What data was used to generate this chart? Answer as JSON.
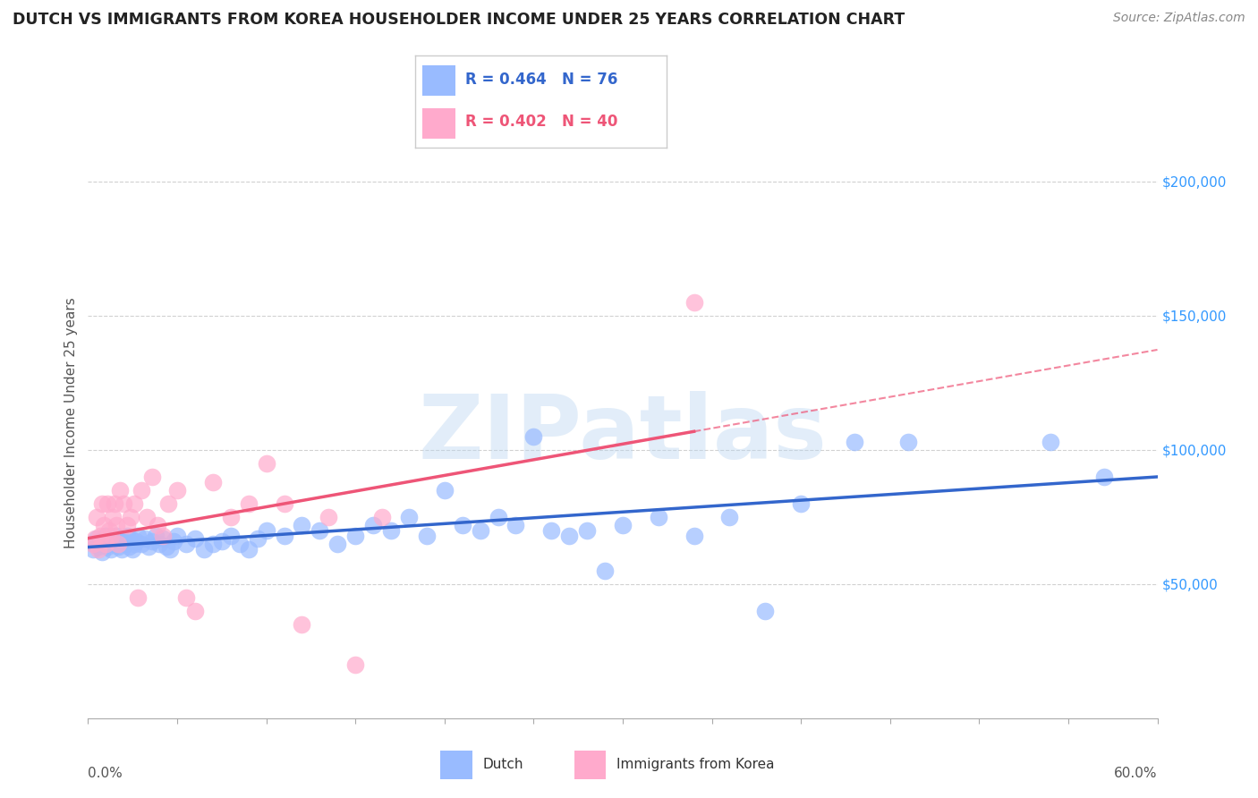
{
  "title": "DUTCH VS IMMIGRANTS FROM KOREA HOUSEHOLDER INCOME UNDER 25 YEARS CORRELATION CHART",
  "source": "Source: ZipAtlas.com",
  "ylabel": "Householder Income Under 25 years",
  "xlim": [
    0.0,
    0.6
  ],
  "ylim": [
    0,
    220000
  ],
  "yticks": [
    50000,
    100000,
    150000,
    200000
  ],
  "ytick_labels": [
    "$50,000",
    "$100,000",
    "$150,000",
    "$200,000"
  ],
  "xtick_left_label": "0.0%",
  "xtick_right_label": "60.0%",
  "background_color": "#ffffff",
  "grid_color": "#cccccc",
  "title_color": "#222222",
  "title_fontsize": 12.5,
  "source_fontsize": 10,
  "watermark_text": "ZIPatlas",
  "watermark_color": "#b8d4f0",
  "blue_color": "#99bbff",
  "pink_color": "#ffaacc",
  "blue_line_color": "#3366cc",
  "pink_line_color": "#ee5577",
  "legend_text_color": "#3366cc",
  "legend_R_blue": "R = 0.464",
  "legend_N_blue": "N = 76",
  "legend_R_pink": "R = 0.402",
  "legend_N_pink": "N = 40",
  "legend_label_blue": "Dutch",
  "legend_label_pink": "Immigrants from Korea",
  "blue_x": [
    0.003,
    0.004,
    0.005,
    0.006,
    0.007,
    0.008,
    0.009,
    0.01,
    0.011,
    0.012,
    0.013,
    0.014,
    0.015,
    0.016,
    0.017,
    0.018,
    0.019,
    0.02,
    0.021,
    0.022,
    0.023,
    0.024,
    0.025,
    0.026,
    0.027,
    0.028,
    0.03,
    0.032,
    0.034,
    0.036,
    0.038,
    0.04,
    0.042,
    0.044,
    0.046,
    0.048,
    0.05,
    0.055,
    0.06,
    0.065,
    0.07,
    0.075,
    0.08,
    0.085,
    0.09,
    0.095,
    0.1,
    0.11,
    0.12,
    0.13,
    0.14,
    0.15,
    0.16,
    0.17,
    0.18,
    0.19,
    0.2,
    0.21,
    0.22,
    0.23,
    0.24,
    0.25,
    0.26,
    0.27,
    0.28,
    0.29,
    0.3,
    0.32,
    0.34,
    0.36,
    0.38,
    0.4,
    0.43,
    0.46,
    0.54,
    0.57
  ],
  "blue_y": [
    63000,
    65000,
    67000,
    64000,
    66000,
    62000,
    65000,
    68000,
    64000,
    67000,
    63000,
    66000,
    65000,
    68000,
    64000,
    67000,
    63000,
    66000,
    65000,
    68000,
    64000,
    67000,
    63000,
    65000,
    66000,
    68000,
    65000,
    67000,
    64000,
    66000,
    68000,
    65000,
    67000,
    64000,
    63000,
    66000,
    68000,
    65000,
    67000,
    63000,
    65000,
    66000,
    68000,
    65000,
    63000,
    67000,
    70000,
    68000,
    72000,
    70000,
    65000,
    68000,
    72000,
    70000,
    75000,
    68000,
    85000,
    72000,
    70000,
    75000,
    72000,
    105000,
    70000,
    68000,
    70000,
    55000,
    72000,
    75000,
    68000,
    75000,
    40000,
    80000,
    103000,
    103000,
    103000,
    90000
  ],
  "pink_x": [
    0.003,
    0.004,
    0.005,
    0.006,
    0.007,
    0.008,
    0.009,
    0.01,
    0.011,
    0.012,
    0.013,
    0.014,
    0.015,
    0.016,
    0.017,
    0.018,
    0.02,
    0.022,
    0.024,
    0.026,
    0.028,
    0.03,
    0.033,
    0.036,
    0.039,
    0.042,
    0.045,
    0.05,
    0.055,
    0.06,
    0.07,
    0.08,
    0.09,
    0.1,
    0.11,
    0.12,
    0.135,
    0.15,
    0.165,
    0.34
  ],
  "pink_y": [
    65000,
    67000,
    75000,
    63000,
    68000,
    80000,
    72000,
    65000,
    80000,
    70000,
    68000,
    75000,
    80000,
    72000,
    65000,
    85000,
    80000,
    72000,
    75000,
    80000,
    45000,
    85000,
    75000,
    90000,
    72000,
    68000,
    80000,
    85000,
    45000,
    40000,
    88000,
    75000,
    80000,
    95000,
    80000,
    35000,
    75000,
    20000,
    75000,
    155000
  ]
}
